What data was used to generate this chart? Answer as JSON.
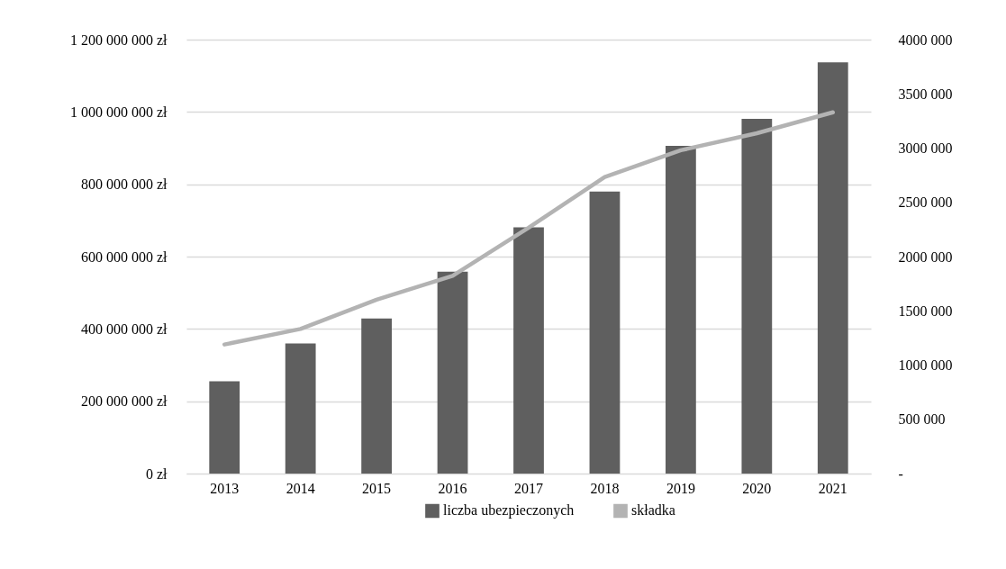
{
  "chart_data": {
    "type": "bar",
    "categories": [
      "2013",
      "2014",
      "2015",
      "2016",
      "2017",
      "2018",
      "2019",
      "2020",
      "2021"
    ],
    "series": [
      {
        "name": "liczba ubezpieczonych",
        "axis": "y2",
        "color": "#5f5f5f",
        "values": [
          850000,
          1200000,
          1430000,
          1860000,
          2270000,
          2600000,
          3020000,
          3270000,
          3790000
        ]
      },
      {
        "name": "składka",
        "type": "line",
        "color": "#b3b3b3",
        "values": [
          357000000,
          400000000,
          481000000,
          547000000,
          680000000,
          820000000,
          894000000,
          941000000,
          999000000
        ]
      }
    ],
    "ylim": [
      0,
      1200000000
    ],
    "yticks": [
      {
        "value": 0,
        "label": "0 zł"
      },
      {
        "value": 200000000,
        "label": "200 000 000 zł"
      },
      {
        "value": 400000000,
        "label": "400 000 000 zł"
      },
      {
        "value": 600000000,
        "label": "600 000 000 zł"
      },
      {
        "value": 800000000,
        "label": "800 000 000 zł"
      },
      {
        "value": 1000000000,
        "label": "1 000 000 000 zł"
      },
      {
        "value": 1200000000,
        "label": "1 200 000 000 zł"
      }
    ],
    "y2lim": [
      0,
      4000000
    ],
    "y2ticks": [
      {
        "value": 0,
        "label": "-"
      },
      {
        "value": 500000,
        "label": "500 000"
      },
      {
        "value": 1000000,
        "label": "1000 000"
      },
      {
        "value": 1500000,
        "label": "1500 000"
      },
      {
        "value": 2000000,
        "label": "2000 000"
      },
      {
        "value": 2500000,
        "label": "2500 000"
      },
      {
        "value": 3000000,
        "label": "3000 000"
      },
      {
        "value": 3500000,
        "label": "3500 000"
      },
      {
        "value": 4000000,
        "label": "4000 000"
      }
    ],
    "grid": "y",
    "legend": "bottom",
    "line_style": "solid"
  }
}
